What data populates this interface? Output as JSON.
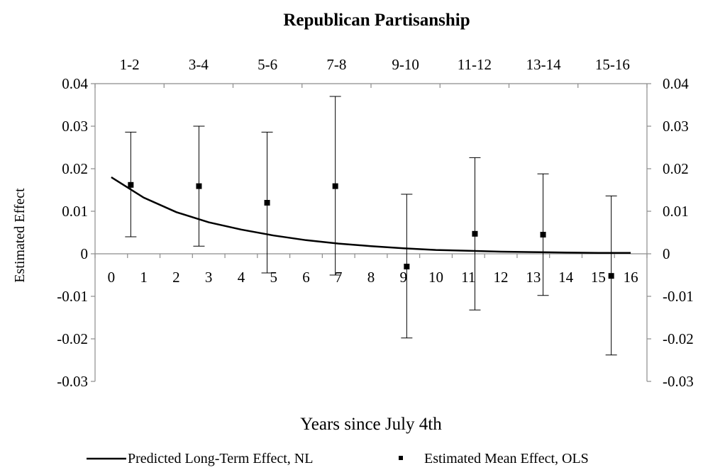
{
  "chart_data": {
    "type": "line",
    "title": "Republican Partisanship",
    "xlabel": "Years since July 4th",
    "ylabel": "Estimated Effect",
    "xlim": [
      -0.5,
      16.5
    ],
    "ylim": [
      -0.03,
      0.04
    ],
    "y_ticks": [
      "0.04",
      "0.03",
      "0.02",
      "0.01",
      "0",
      "-0.01",
      "-0.02",
      "-0.03"
    ],
    "y_tick_values": [
      0.04,
      0.03,
      0.02,
      0.01,
      0,
      -0.01,
      -0.02,
      -0.03
    ],
    "x_ticks": [
      "0",
      "1",
      "2",
      "3",
      "4",
      "5",
      "6",
      "7",
      "8",
      "9",
      "10",
      "11",
      "12",
      "13",
      "14",
      "15",
      "16"
    ],
    "top_axis_ticks": [
      "1-2",
      "3-4",
      "5-6",
      "7-8",
      "9-10",
      "11-12",
      "13-14",
      "15-16"
    ],
    "grid": false,
    "legend_position": "bottom",
    "series": [
      {
        "name": "Predicted Long-Term Effect, NL",
        "type": "line",
        "color": "#000000",
        "x": [
          0,
          1,
          2,
          3,
          4,
          5,
          6,
          7,
          8,
          9,
          10,
          11,
          12,
          13,
          14,
          15,
          16
        ],
        "y": [
          0.018,
          0.0132,
          0.0098,
          0.0074,
          0.0057,
          0.0043,
          0.0032,
          0.0024,
          0.0018,
          0.0013,
          0.0009,
          0.0007,
          0.0005,
          0.0004,
          0.0003,
          0.0002,
          0.0002
        ]
      },
      {
        "name": "Estimated Mean Effect, OLS",
        "type": "scatter",
        "color": "#000000",
        "x": [
          0.6,
          2.7,
          4.8,
          6.9,
          9.1,
          11.2,
          13.3,
          15.4
        ],
        "y": [
          0.0162,
          0.0159,
          0.012,
          0.0159,
          -0.003,
          0.0047,
          0.0045,
          -0.0052
        ],
        "error_low": [
          0.004,
          0.0018,
          -0.0045,
          -0.005,
          -0.0198,
          -0.0132,
          -0.0098,
          -0.0238
        ],
        "error_high": [
          0.0286,
          0.03,
          0.0286,
          0.037,
          0.014,
          0.0226,
          0.0188,
          0.0136
        ]
      }
    ]
  }
}
